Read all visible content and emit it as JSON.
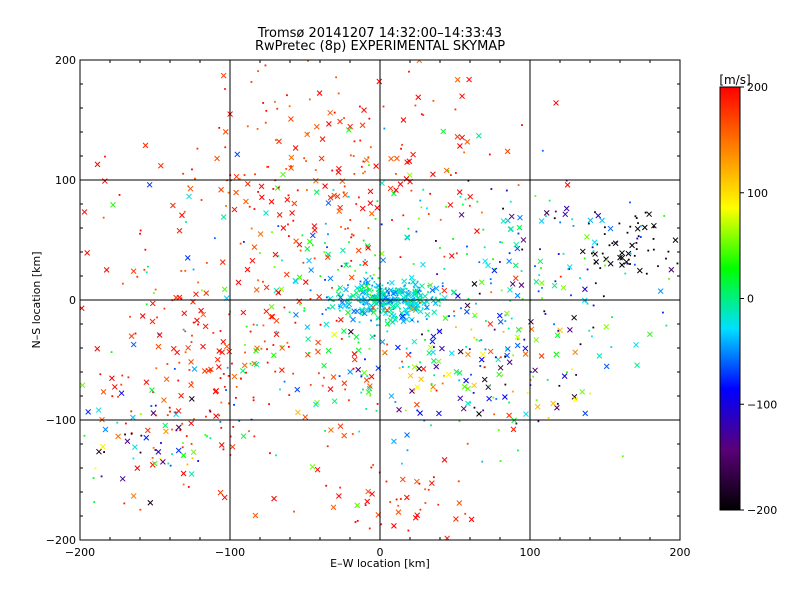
{
  "chart_data": {
    "type": "scatter",
    "title": "Tromsø 20141207 14:32:00–14:33:43",
    "subtitle": "RwPretec (8p) EXPERIMENTAL SKYMAP",
    "xlabel": "E–W location [km]",
    "ylabel": "N–S location [km]",
    "xlim": [
      -200,
      200
    ],
    "ylim": [
      -200,
      200
    ],
    "xticks": [
      "-200",
      "-100",
      "0",
      "100",
      "200"
    ],
    "yticks": [
      "200",
      "100",
      "0",
      "-100",
      "-200"
    ],
    "grid": true,
    "colorbar": {
      "label": "[m/s]",
      "range": [
        -200,
        200
      ],
      "ticks": [
        "200",
        "100",
        "0",
        "-100",
        "-200"
      ],
      "colors": [
        "#000000",
        "#5a0078",
        "#0000ff",
        "#00e0ff",
        "#00ff00",
        "#ffff00",
        "#ff8000",
        "#ff0000"
      ]
    },
    "markers": [
      "cross",
      "dot"
    ],
    "clusters": [
      {
        "cx": 5,
        "cy": 0,
        "sx": 18,
        "sy": 8,
        "n": 320,
        "vmin": -60,
        "vmax": 10
      },
      {
        "cx": 0,
        "cy": 0,
        "sx": 80,
        "sy": 60,
        "n": 300,
        "vmin": -80,
        "vmax": 60
      },
      {
        "cx": -40,
        "cy": 110,
        "sx": 60,
        "sy": 45,
        "n": 230,
        "vmin": 150,
        "vmax": 220
      },
      {
        "cx": -110,
        "cy": -60,
        "sx": 50,
        "sy": 45,
        "n": 220,
        "vmin": 150,
        "vmax": 220
      },
      {
        "cx": -150,
        "cy": -120,
        "sx": 25,
        "sy": 20,
        "n": 60,
        "vmin": -200,
        "vmax": 200
      },
      {
        "cx": 60,
        "cy": -50,
        "sx": 45,
        "sy": 40,
        "n": 180,
        "vmin": -200,
        "vmax": 200
      },
      {
        "cx": 165,
        "cy": 45,
        "sx": 20,
        "sy": 15,
        "n": 55,
        "vmin": -220,
        "vmax": -180
      },
      {
        "cx": 10,
        "cy": -170,
        "sx": 25,
        "sy": 20,
        "n": 45,
        "vmin": 160,
        "vmax": 220
      },
      {
        "cx": 120,
        "cy": 40,
        "sx": 40,
        "sy": 30,
        "n": 80,
        "vmin": -200,
        "vmax": 60
      }
    ]
  }
}
